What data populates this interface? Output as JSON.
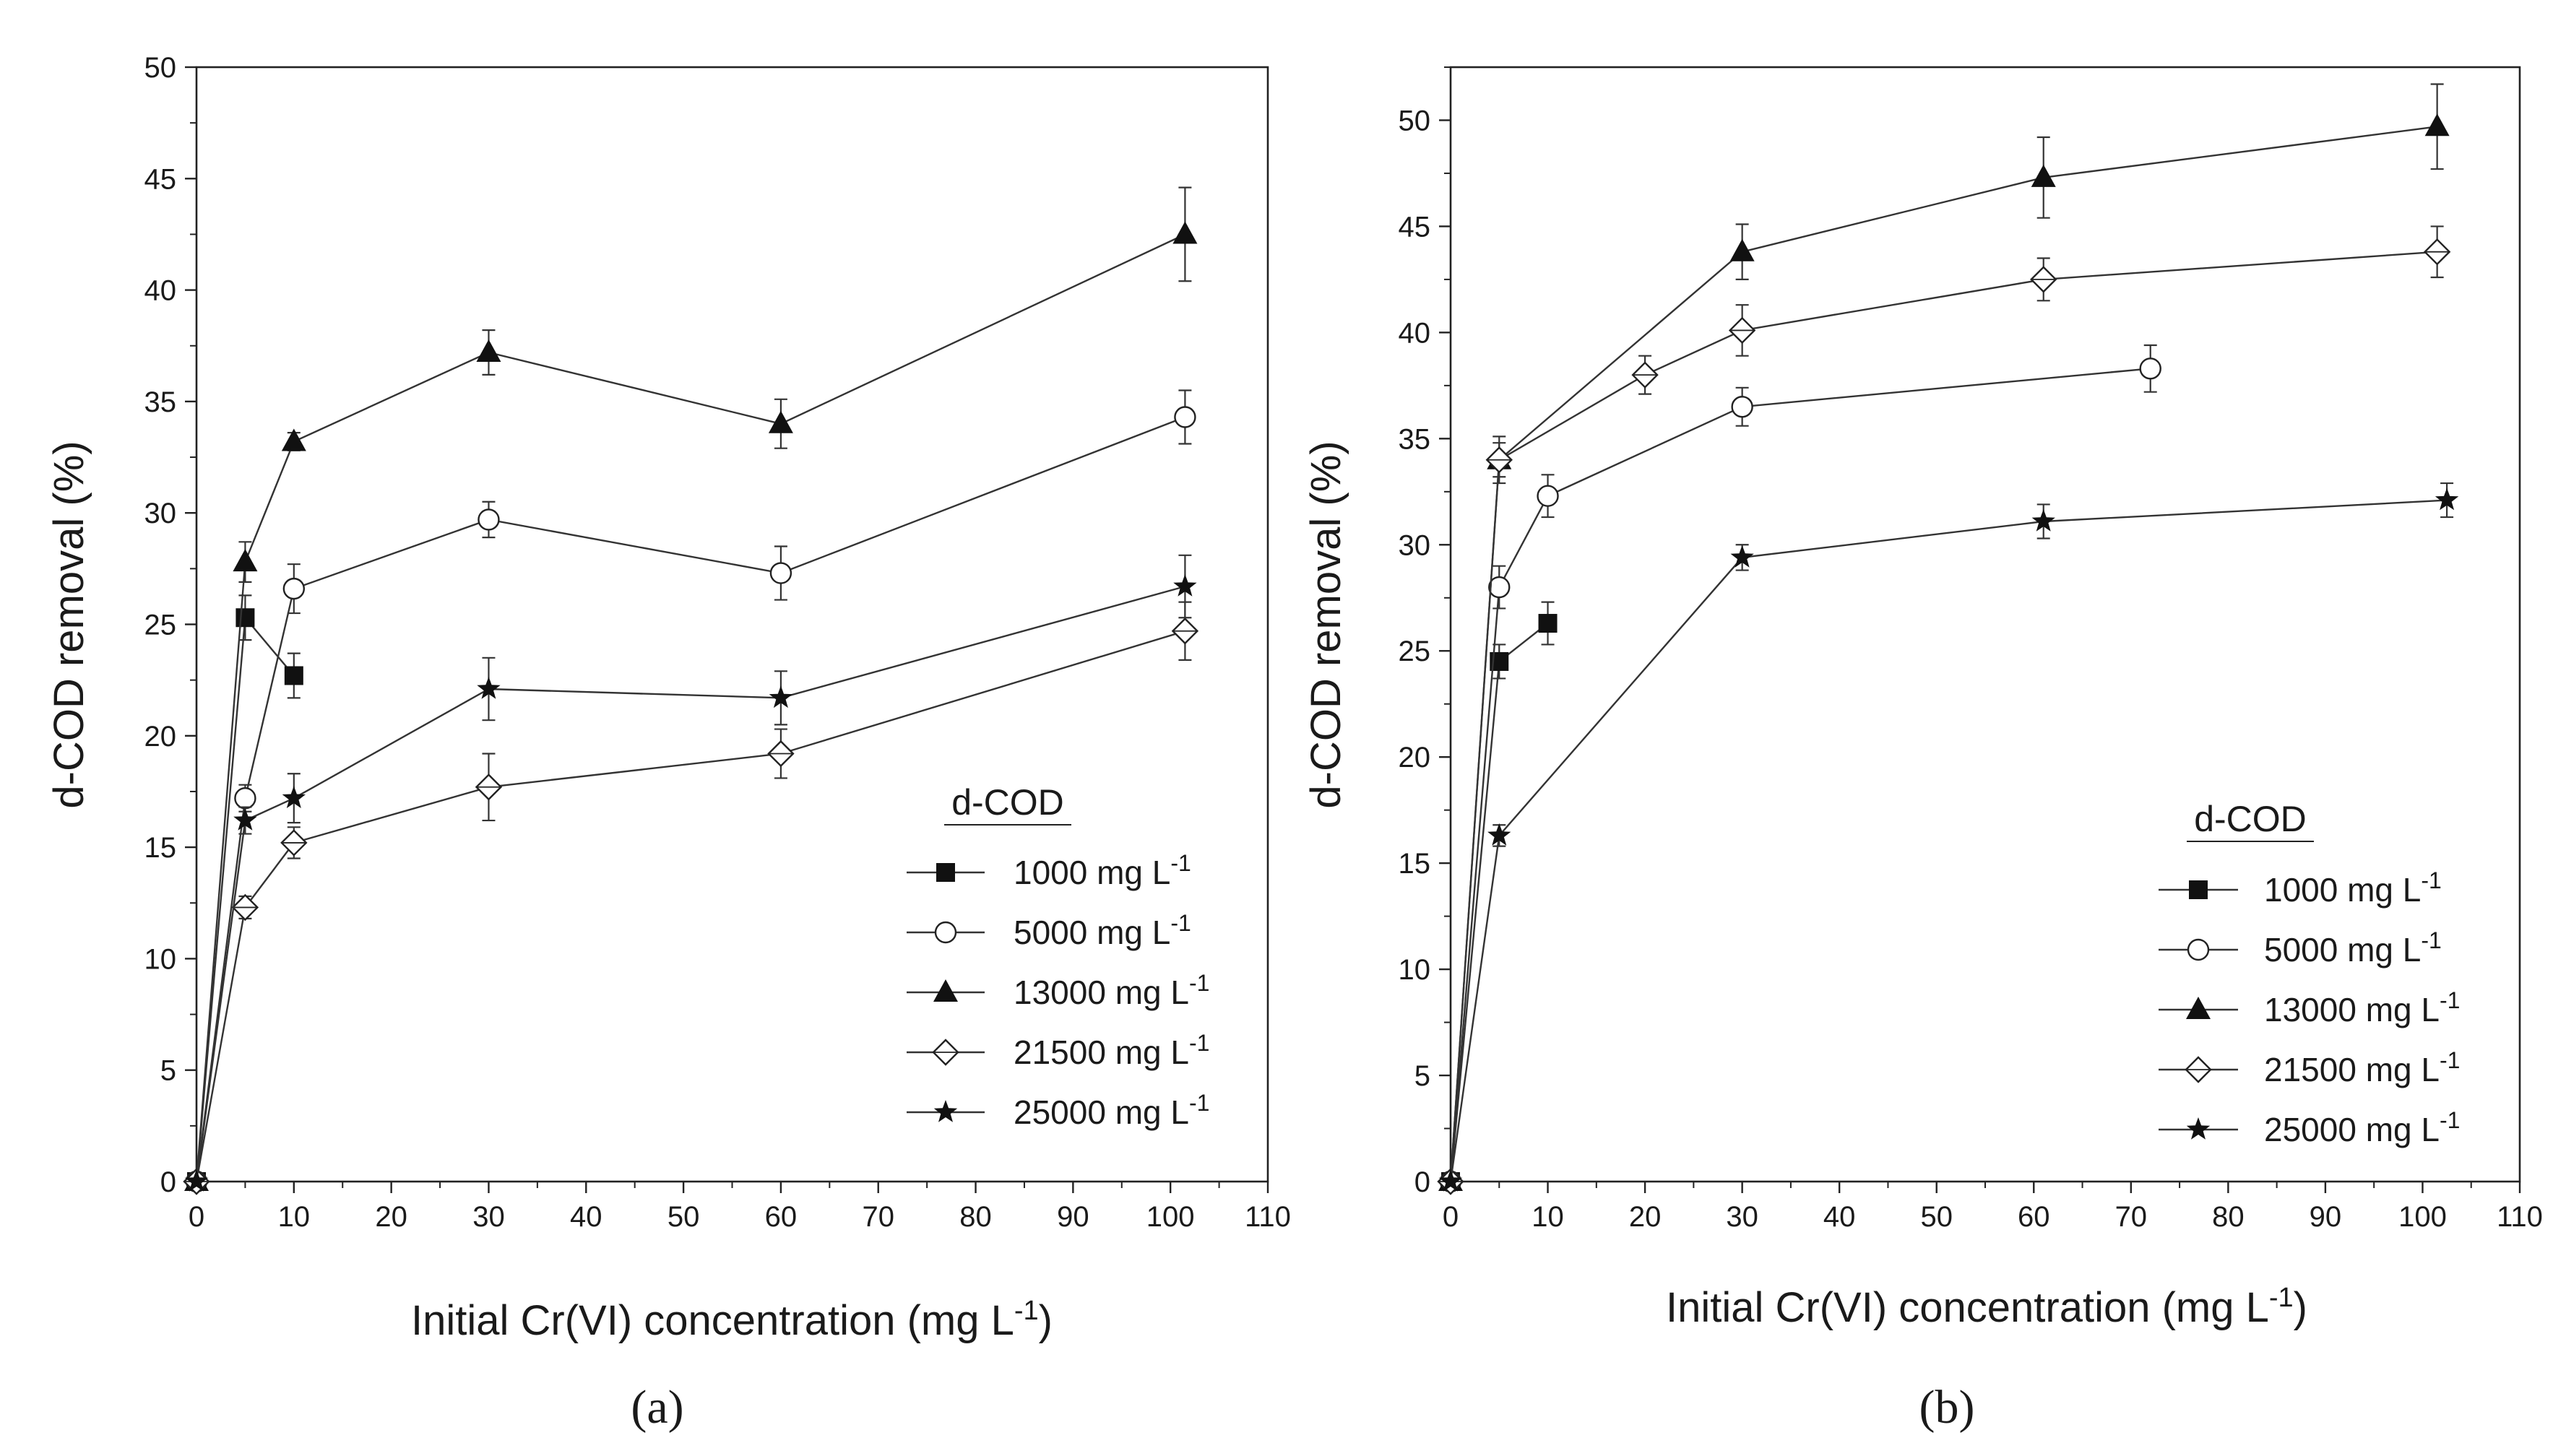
{
  "chart_data": [
    {
      "type": "line",
      "panel_label": "(a)",
      "xlabel": "Initial Cr(VI) concentration (mg L",
      "xlabel_sup": "-1",
      "xlabel_end": ")",
      "ylabel": "d-COD removal (%)",
      "xlim": [
        0,
        110
      ],
      "ylim": [
        0,
        50
      ],
      "xticks": [
        0,
        10,
        20,
        30,
        40,
        50,
        60,
        70,
        80,
        90,
        100,
        110
      ],
      "yticks": [
        0,
        5,
        10,
        15,
        20,
        25,
        30,
        35,
        40,
        45,
        50
      ],
      "legend": {
        "title": "d-COD",
        "placement": "bottom-right"
      },
      "series": [
        {
          "name": "1000 mg L",
          "unit_sup": "-1",
          "marker": "square",
          "points": [
            [
              0,
              0,
              0
            ],
            [
              5,
              25.3,
              1.0
            ],
            [
              10,
              22.7,
              1.0
            ]
          ]
        },
        {
          "name": "5000 mg L",
          "unit_sup": "-1",
          "marker": "circle",
          "points": [
            [
              0,
              0,
              0
            ],
            [
              5,
              17.2,
              0.6
            ],
            [
              10,
              26.6,
              1.1
            ],
            [
              30,
              29.7,
              0.8
            ],
            [
              60,
              27.3,
              1.2
            ],
            [
              101.5,
              34.3,
              1.2
            ]
          ]
        },
        {
          "name": "13000 mg L",
          "unit_sup": "-1",
          "marker": "triangle",
          "points": [
            [
              0,
              0,
              0
            ],
            [
              5,
              27.8,
              0.9
            ],
            [
              10,
              33.2,
              0.4
            ],
            [
              30,
              37.2,
              1.0
            ],
            [
              60,
              34.0,
              1.1
            ],
            [
              101.5,
              42.5,
              2.1
            ]
          ]
        },
        {
          "name": "21500 mg L",
          "unit_sup": "-1",
          "marker": "diamond",
          "points": [
            [
              0,
              0,
              0
            ],
            [
              5,
              12.3,
              0.5
            ],
            [
              10,
              15.2,
              0.7
            ],
            [
              30,
              17.7,
              1.5
            ],
            [
              60,
              19.2,
              1.1
            ],
            [
              101.5,
              24.7,
              1.3
            ]
          ]
        },
        {
          "name": "25000 mg L",
          "unit_sup": "-1",
          "marker": "star",
          "points": [
            [
              0,
              0,
              0
            ],
            [
              5,
              16.2,
              0.6
            ],
            [
              10,
              17.2,
              1.1
            ],
            [
              30,
              22.1,
              1.4
            ],
            [
              60,
              21.7,
              1.2
            ],
            [
              101.5,
              26.7,
              1.4
            ]
          ]
        }
      ]
    },
    {
      "type": "line",
      "panel_label": "(b)",
      "xlabel": "Initial Cr(VI) concentration (mg L",
      "xlabel_sup": "-1",
      "xlabel_end": ")",
      "ylabel": "d-COD removal (%)",
      "xlim": [
        0,
        110
      ],
      "ylim": [
        0,
        52.5
      ],
      "xticks": [
        0,
        10,
        20,
        30,
        40,
        50,
        60,
        70,
        80,
        90,
        100,
        110
      ],
      "yticks": [
        0,
        5,
        10,
        15,
        20,
        25,
        30,
        35,
        40,
        45,
        50
      ],
      "legend": {
        "title": "d-COD",
        "placement": "bottom-right"
      },
      "series": [
        {
          "name": "1000 mg L",
          "unit_sup": "-1",
          "marker": "square",
          "points": [
            [
              0,
              0,
              0
            ],
            [
              5,
              24.5,
              0.8
            ],
            [
              10,
              26.3,
              1.0
            ]
          ]
        },
        {
          "name": "5000 mg L",
          "unit_sup": "-1",
          "marker": "circle",
          "points": [
            [
              0,
              0,
              0
            ],
            [
              5,
              28.0,
              1.0
            ],
            [
              10,
              32.3,
              1.0
            ],
            [
              30,
              36.5,
              0.9
            ],
            [
              72,
              38.3,
              1.1
            ]
          ]
        },
        {
          "name": "13000 mg L",
          "unit_sup": "-1",
          "marker": "triangle",
          "points": [
            [
              0,
              0,
              0
            ],
            [
              5,
              34.0,
              1.1
            ],
            [
              30,
              43.8,
              1.3
            ],
            [
              61,
              47.3,
              1.9
            ],
            [
              101.5,
              49.7,
              2.0
            ]
          ]
        },
        {
          "name": "21500 mg L",
          "unit_sup": "-1",
          "marker": "diamond",
          "points": [
            [
              0,
              0,
              0
            ],
            [
              5,
              34.0,
              0.8
            ],
            [
              20,
              38.0,
              0.9
            ],
            [
              30,
              40.1,
              1.2
            ],
            [
              61,
              42.5,
              1.0
            ],
            [
              101.5,
              43.8,
              1.2
            ]
          ]
        },
        {
          "name": "25000 mg L",
          "unit_sup": "-1",
          "marker": "star",
          "points": [
            [
              0,
              0,
              0
            ],
            [
              5,
              16.3,
              0.5
            ],
            [
              30,
              29.4,
              0.6
            ],
            [
              61,
              31.1,
              0.8
            ],
            [
              102.5,
              32.1,
              0.8
            ]
          ]
        }
      ]
    }
  ]
}
